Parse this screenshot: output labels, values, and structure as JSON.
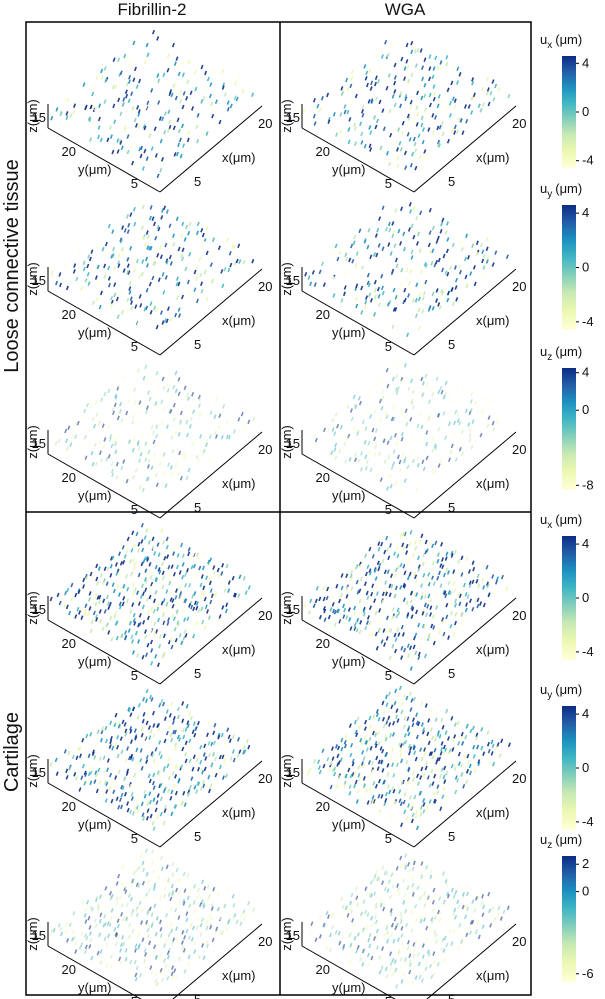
{
  "columns": [
    "Fibrillin-2",
    "WGA"
  ],
  "sections": [
    {
      "label": "Loose connective tissue"
    },
    {
      "label": "Cartilage"
    }
  ],
  "axes": {
    "z_label": "z(μm)",
    "z_tick": "15",
    "y_label": "y(μm)",
    "y_ticks": [
      "20",
      "5"
    ],
    "x_label": "x(μm)",
    "x_ticks": [
      "5",
      "20"
    ]
  },
  "colorbars": [
    {
      "symbol": "u",
      "component": "x",
      "unit": "(μm)",
      "lim": [
        -4.6,
        4.6
      ],
      "ticks": [
        4,
        0,
        -4
      ]
    },
    {
      "symbol": "u",
      "component": "y",
      "unit": "(μm)",
      "lim": [
        -4.6,
        4.6
      ],
      "ticks": [
        4,
        0,
        -4
      ]
    },
    {
      "symbol": "u",
      "component": "z",
      "unit": "(μm)",
      "lim": [
        -8.5,
        4.5
      ],
      "ticks": [
        4,
        0,
        -8
      ]
    },
    {
      "symbol": "u",
      "component": "x",
      "unit": "(μm)",
      "lim": [
        -4.6,
        4.6
      ],
      "ticks": [
        4,
        0,
        -4
      ]
    },
    {
      "symbol": "u",
      "component": "y",
      "unit": "(μm)",
      "lim": [
        -4.6,
        4.6
      ],
      "ticks": [
        4,
        0,
        -4
      ]
    },
    {
      "symbol": "u",
      "component": "z",
      "unit": "(μm)",
      "lim": [
        -6.6,
        2.6
      ],
      "ticks": [
        2,
        0,
        -6
      ]
    }
  ]
}
